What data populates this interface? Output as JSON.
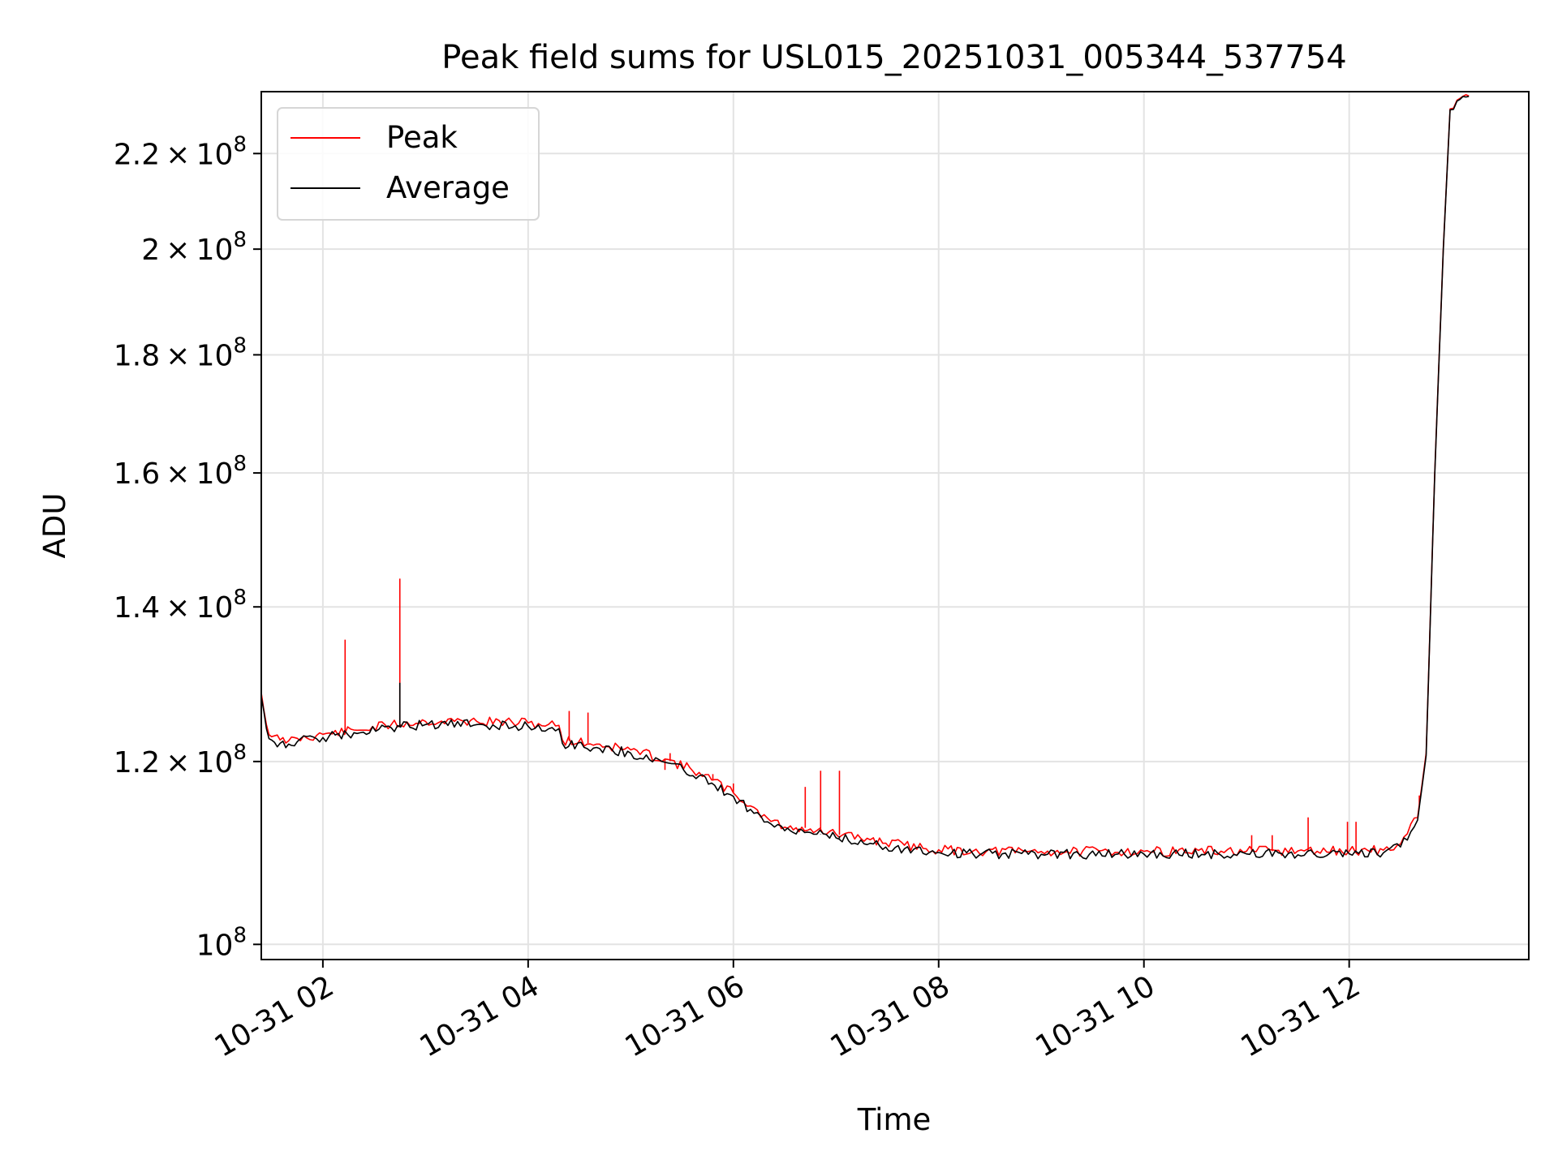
{
  "chart_data": {
    "type": "line",
    "title": "Peak field sums for USL015_20251031_005344_537754",
    "xlabel": "Time",
    "ylabel": "ADU",
    "y_scale": "log",
    "ylim": [
      98500000,
      234000000
    ],
    "xlim": [
      "2025-10-31 01:24",
      "2025-10-31 13:45"
    ],
    "grid": true,
    "legend_position": "upper-left",
    "x_ticks": [
      {
        "value": "2025-10-31 02:00",
        "label": "10-31 02"
      },
      {
        "value": "2025-10-31 04:00",
        "label": "10-31 04"
      },
      {
        "value": "2025-10-31 06:00",
        "label": "10-31 06"
      },
      {
        "value": "2025-10-31 08:00",
        "label": "10-31 08"
      },
      {
        "value": "2025-10-31 10:00",
        "label": "10-31 10"
      },
      {
        "value": "2025-10-31 12:00",
        "label": "10-31 12"
      }
    ],
    "y_ticks": [
      {
        "value": 100000000,
        "mant": "",
        "exp": "8"
      },
      {
        "value": 120000000,
        "mant": "1.2",
        "exp": "8"
      },
      {
        "value": 140000000,
        "mant": "1.4",
        "exp": "8"
      },
      {
        "value": 160000000,
        "mant": "1.6",
        "exp": "8"
      },
      {
        "value": 180000000,
        "mant": "1.8",
        "exp": "8"
      },
      {
        "value": 200000000,
        "mant": "2",
        "exp": "8"
      },
      {
        "value": 220000000,
        "mant": "2.2",
        "exp": "8"
      }
    ],
    "series": [
      {
        "name": "Peak",
        "color": "#ff0000",
        "points": [
          [
            "2025-10-31 01:24",
            128500000
          ],
          [
            "2025-10-31 01:27",
            124500000
          ],
          [
            "2025-10-31 01:30",
            123000000
          ],
          [
            "2025-10-31 01:35",
            122600000
          ],
          [
            "2025-10-31 01:40",
            122500000
          ],
          [
            "2025-10-31 01:45",
            122800000
          ],
          [
            "2025-10-31 02:00",
            123300000
          ],
          [
            "2025-10-31 02:20",
            123800000
          ],
          [
            "2025-10-31 02:40",
            124500000
          ],
          [
            "2025-10-31 03:00",
            124900000
          ],
          [
            "2025-10-31 03:30",
            124900000
          ],
          [
            "2025-10-31 04:00",
            124700000
          ],
          [
            "2025-10-31 04:18",
            124400000
          ],
          [
            "2025-10-31 04:20",
            122600000
          ],
          [
            "2025-10-31 04:40",
            122100000
          ],
          [
            "2025-10-31 05:00",
            121400000
          ],
          [
            "2025-10-31 05:20",
            120300000
          ],
          [
            "2025-10-31 05:40",
            118700000
          ],
          [
            "2025-10-31 06:00",
            116300000
          ],
          [
            "2025-10-31 06:10",
            114800000
          ],
          [
            "2025-10-31 06:20",
            113400000
          ],
          [
            "2025-10-31 06:30",
            112400000
          ],
          [
            "2025-10-31 06:35",
            112100000
          ],
          [
            "2025-10-31 06:40",
            112400000
          ],
          [
            "2025-10-31 06:45",
            112200000
          ],
          [
            "2025-10-31 07:00",
            111600000
          ],
          [
            "2025-10-31 07:20",
            111000000
          ],
          [
            "2025-10-31 07:40",
            110400000
          ],
          [
            "2025-10-31 08:00",
            109900000
          ],
          [
            "2025-10-31 08:20",
            109750000
          ],
          [
            "2025-10-31 09:00",
            109700000
          ],
          [
            "2025-10-31 10:00",
            109720000
          ],
          [
            "2025-10-31 11:00",
            109740000
          ],
          [
            "2025-10-31 12:00",
            109750000
          ],
          [
            "2025-10-31 12:20",
            109850000
          ],
          [
            "2025-10-31 12:30",
            110500000
          ],
          [
            "2025-10-31 12:40",
            113500000
          ],
          [
            "2025-10-31 12:45",
            121000000
          ],
          [
            "2025-10-31 12:50",
            160000000
          ],
          [
            "2025-10-31 12:55",
            200000000
          ],
          [
            "2025-10-31 12:59",
            230000000
          ],
          [
            "2025-10-31 13:03",
            232000000
          ],
          [
            "2025-10-31 13:10",
            233000000
          ]
        ],
        "spikes": [
          [
            "2025-10-31 02:13",
            135500000
          ],
          [
            "2025-10-31 02:45",
            144000000
          ],
          [
            "2025-10-31 04:24",
            126200000
          ],
          [
            "2025-10-31 04:35",
            126000000
          ],
          [
            "2025-10-31 05:20",
            119000000
          ],
          [
            "2025-10-31 05:23",
            121000000
          ],
          [
            "2025-10-31 05:48",
            118500000
          ],
          [
            "2025-10-31 06:00",
            117400000
          ],
          [
            "2025-10-31 06:42",
            117000000
          ],
          [
            "2025-10-31 06:51",
            118900000
          ],
          [
            "2025-10-31 07:02",
            118900000
          ],
          [
            "2025-10-31 11:03",
            111500000
          ],
          [
            "2025-10-31 11:15",
            111500000
          ],
          [
            "2025-10-31 11:36",
            113500000
          ],
          [
            "2025-10-31 11:59",
            113000000
          ],
          [
            "2025-10-31 12:04",
            113000000
          ],
          [
            "2025-10-31 12:41",
            116000000
          ]
        ]
      },
      {
        "name": "Average",
        "color": "#000000",
        "points": [
          [
            "2025-10-31 01:24",
            128000000
          ],
          [
            "2025-10-31 01:27",
            124000000
          ],
          [
            "2025-10-31 01:30",
            122600000
          ],
          [
            "2025-10-31 01:35",
            122200000
          ],
          [
            "2025-10-31 01:40",
            122100000
          ],
          [
            "2025-10-31 01:45",
            122400000
          ],
          [
            "2025-10-31 02:00",
            122900000
          ],
          [
            "2025-10-31 02:20",
            123400000
          ],
          [
            "2025-10-31 02:40",
            124100000
          ],
          [
            "2025-10-31 03:00",
            124500000
          ],
          [
            "2025-10-31 03:30",
            124500000
          ],
          [
            "2025-10-31 04:00",
            124300000
          ],
          [
            "2025-10-31 04:18",
            124000000
          ],
          [
            "2025-10-31 04:20",
            122200000
          ],
          [
            "2025-10-31 04:40",
            121700000
          ],
          [
            "2025-10-31 05:00",
            121000000
          ],
          [
            "2025-10-31 05:20",
            119900000
          ],
          [
            "2025-10-31 05:40",
            118300000
          ],
          [
            "2025-10-31 06:00",
            115900000
          ],
          [
            "2025-10-31 06:10",
            114400000
          ],
          [
            "2025-10-31 06:20",
            113000000
          ],
          [
            "2025-10-31 06:30",
            112000000
          ],
          [
            "2025-10-31 06:35",
            111800000
          ],
          [
            "2025-10-31 06:40",
            112100000
          ],
          [
            "2025-10-31 06:45",
            111800000
          ],
          [
            "2025-10-31 07:00",
            111200000
          ],
          [
            "2025-10-31 07:20",
            110600000
          ],
          [
            "2025-10-31 07:40",
            110000000
          ],
          [
            "2025-10-31 08:00",
            109600000
          ],
          [
            "2025-10-31 08:20",
            109450000
          ],
          [
            "2025-10-31 09:00",
            109400000
          ],
          [
            "2025-10-31 10:00",
            109420000
          ],
          [
            "2025-10-31 11:00",
            109440000
          ],
          [
            "2025-10-31 12:00",
            109450000
          ],
          [
            "2025-10-31 12:20",
            109550000
          ],
          [
            "2025-10-31 12:30",
            110200000
          ],
          [
            "2025-10-31 12:40",
            113200000
          ],
          [
            "2025-10-31 12:45",
            120700000
          ],
          [
            "2025-10-31 12:50",
            159700000
          ],
          [
            "2025-10-31 12:55",
            199700000
          ],
          [
            "2025-10-31 12:59",
            229800000
          ],
          [
            "2025-10-31 13:03",
            231800000
          ],
          [
            "2025-10-31 13:10",
            232900000
          ]
        ],
        "spikes": [
          [
            "2025-10-31 02:45",
            129800000
          ],
          [
            "2025-10-31 06:51",
            111600000
          ],
          [
            "2025-10-31 07:02",
            111400000
          ]
        ]
      }
    ]
  }
}
